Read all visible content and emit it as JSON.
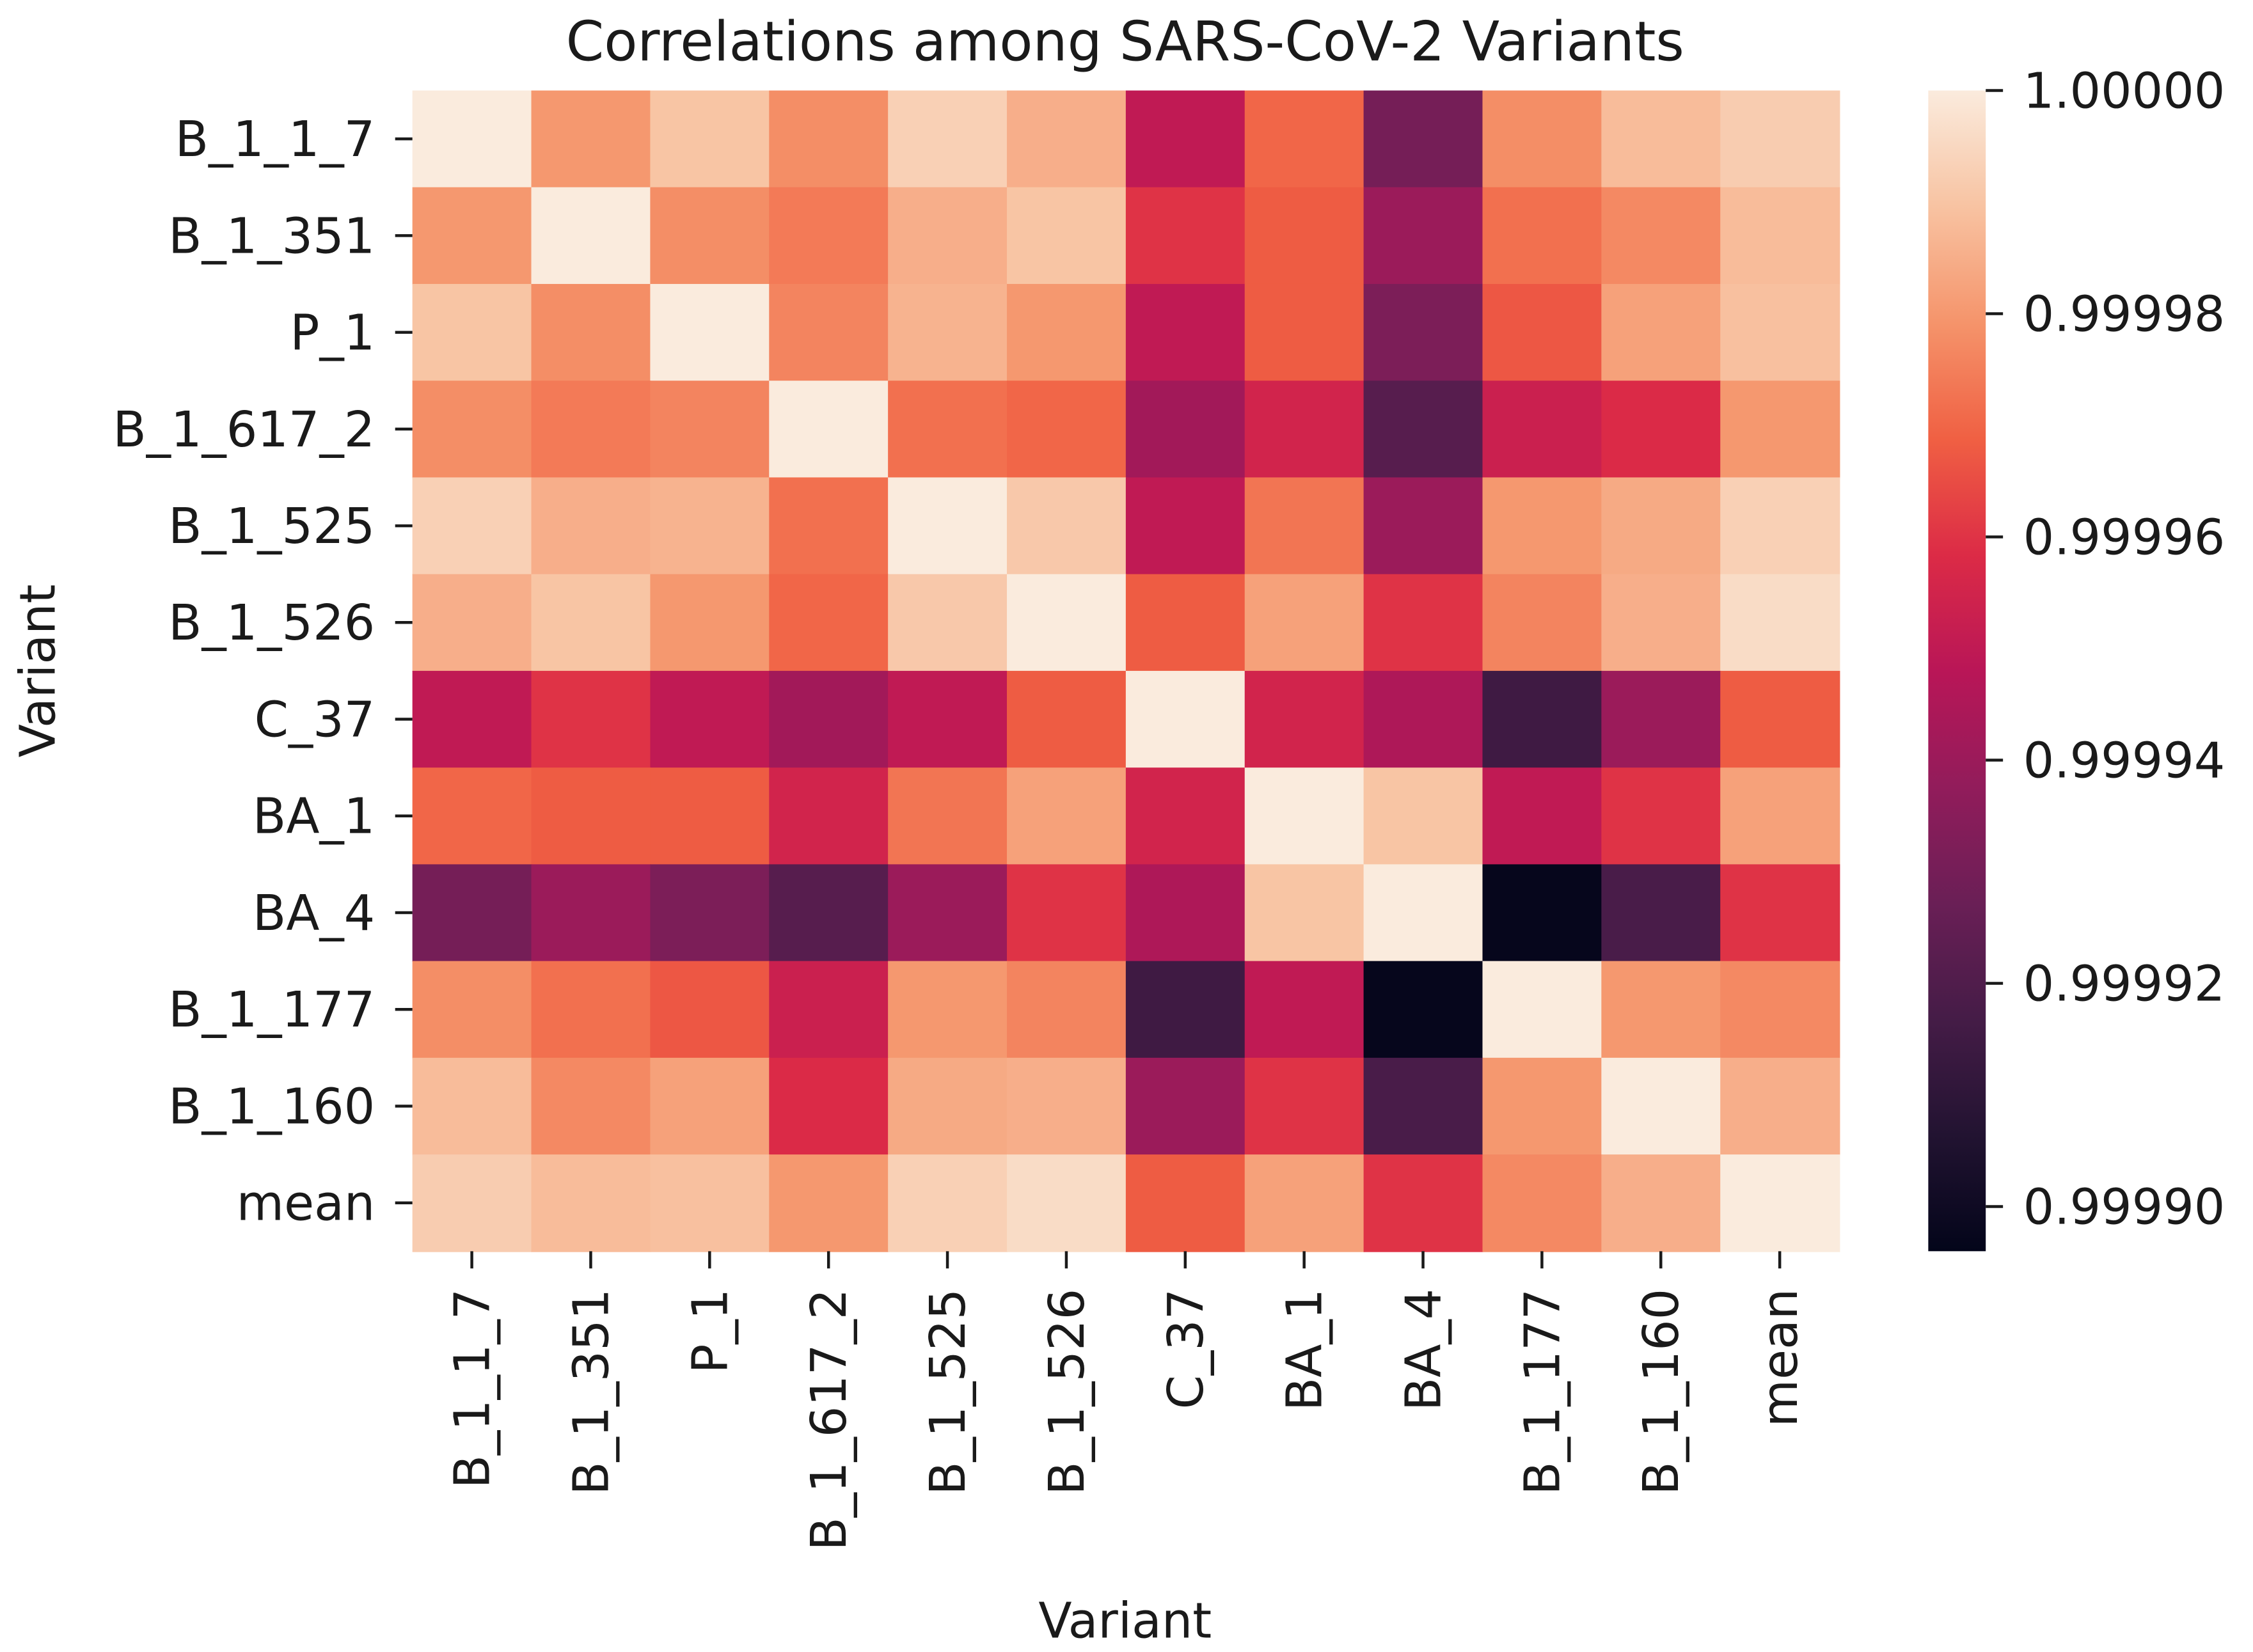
{
  "chart_data": {
    "type": "heatmap",
    "title": "Correlations among SARS-CoV-2 Variants",
    "xlabel": "Variant",
    "ylabel": "Variant",
    "x_categories": [
      "B_1_1_7",
      "B_1_351",
      "P_1",
      "B_1_617_2",
      "B_1_525",
      "B_1_526",
      "C_37",
      "BA_1",
      "BA_4",
      "B_1_177",
      "B_1_160",
      "mean"
    ],
    "y_categories": [
      "B_1_1_7",
      "B_1_351",
      "P_1",
      "B_1_617_2",
      "B_1_525",
      "B_1_526",
      "C_37",
      "BA_1",
      "BA_4",
      "B_1_177",
      "B_1_160",
      "mean"
    ],
    "values": [
      [
        1.0,
        0.99998,
        0.99999,
        0.999978,
        0.999993,
        0.999985,
        0.99995,
        0.99997,
        0.99993,
        0.999978,
        0.999988,
        0.999992
      ],
      [
        0.99998,
        1.0,
        0.999978,
        0.999974,
        0.999985,
        0.99999,
        0.99996,
        0.999968,
        0.99994,
        0.999972,
        0.999977,
        0.999988
      ],
      [
        0.99999,
        0.999978,
        1.0,
        0.999976,
        0.999986,
        0.99998,
        0.99995,
        0.999968,
        0.999932,
        0.999967,
        0.999982,
        0.999989
      ],
      [
        0.999978,
        0.999974,
        0.999976,
        1.0,
        0.999972,
        0.99997,
        0.999942,
        0.999955,
        0.999922,
        0.999953,
        0.999958,
        0.99998
      ],
      [
        0.999993,
        0.999985,
        0.999986,
        0.999972,
        1.0,
        0.999991,
        0.99995,
        0.999973,
        0.99994,
        0.99998,
        0.999984,
        0.999993
      ],
      [
        0.999985,
        0.99999,
        0.99998,
        0.99997,
        0.999991,
        1.0,
        0.999968,
        0.999982,
        0.99996,
        0.999976,
        0.999985,
        0.999996
      ],
      [
        0.99995,
        0.99996,
        0.99995,
        0.999942,
        0.99995,
        0.999968,
        1.0,
        0.999955,
        0.999945,
        0.999915,
        0.99994,
        0.999968
      ],
      [
        0.99997,
        0.999968,
        0.999968,
        0.999955,
        0.999973,
        0.999982,
        0.999955,
        1.0,
        0.99999,
        0.99995,
        0.99996,
        0.999982
      ],
      [
        0.99993,
        0.99994,
        0.999932,
        0.999922,
        0.99994,
        0.99996,
        0.999945,
        0.99999,
        1.0,
        0.999897,
        0.999918,
        0.99996
      ],
      [
        0.999978,
        0.999972,
        0.999967,
        0.999953,
        0.99998,
        0.999976,
        0.999915,
        0.99995,
        0.999897,
        1.0,
        0.99998,
        0.999977
      ],
      [
        0.999988,
        0.999977,
        0.999982,
        0.999958,
        0.999984,
        0.999985,
        0.99994,
        0.99996,
        0.999918,
        0.99998,
        1.0,
        0.999985
      ],
      [
        0.999992,
        0.999988,
        0.999989,
        0.99998,
        0.999993,
        0.999996,
        0.999968,
        0.999982,
        0.99996,
        0.999977,
        0.999985,
        1.0
      ]
    ],
    "colormap": "rocket",
    "colorbar": {
      "range": [
        0.999896,
        1.0
      ],
      "ticks": [
        0.9999,
        0.99992,
        0.99994,
        0.99996,
        0.99998,
        1.0
      ],
      "tick_labels": [
        "0.99990",
        "0.99992",
        "0.99994",
        "0.99996",
        "0.99998",
        "1.00000"
      ]
    },
    "grid": false,
    "legend": "colorbar-right"
  }
}
